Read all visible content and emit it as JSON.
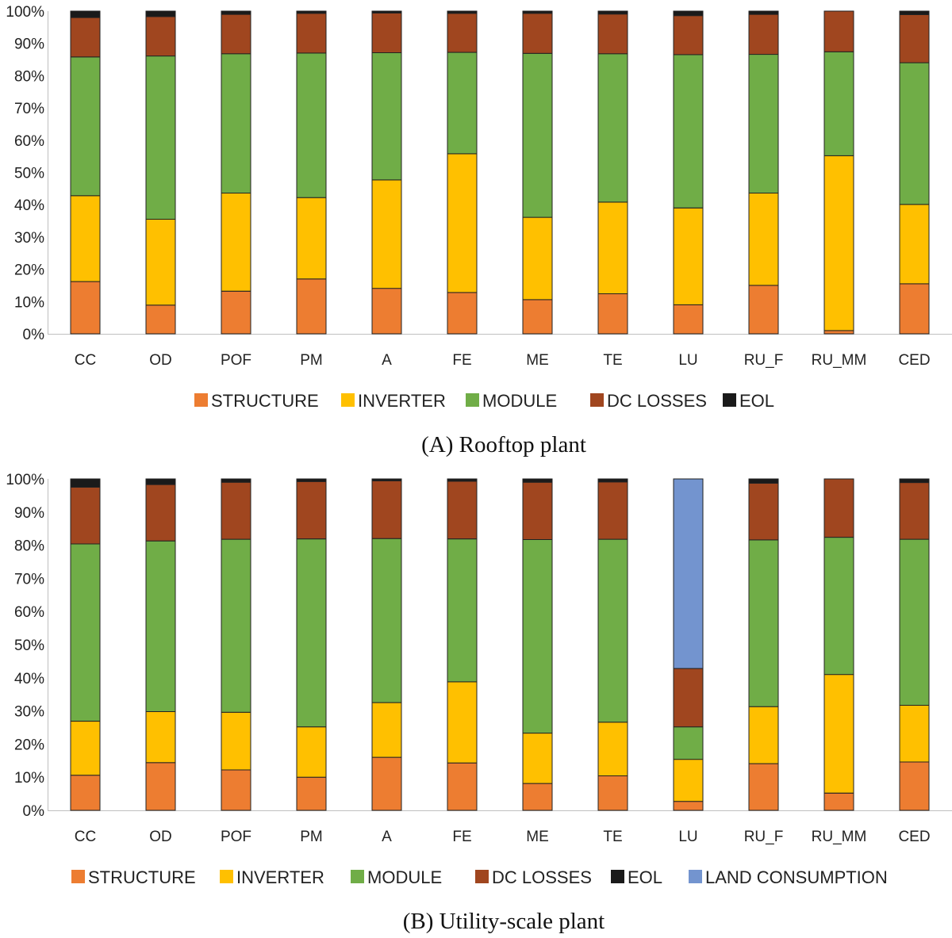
{
  "colors": {
    "STRUCTURE": "#ED7D31",
    "INVERTER": "#FFC000",
    "MODULE": "#70AD47",
    "DC LOSSES": "#A0461F",
    "EOL": "#1a1a1a",
    "LAND CONSUMPTION": "#7394CF"
  },
  "chart_data": [
    {
      "type": "bar",
      "stacked": true,
      "caption": "(A) Rooftop plant",
      "categories": [
        "CC",
        "OD",
        "POF",
        "PM",
        "A",
        "FE",
        "ME",
        "TE",
        "LU",
        "RU_F",
        "RU_MM",
        "CED"
      ],
      "y_tick_labels": [
        "0%",
        "10%",
        "20%",
        "30%",
        "40%",
        "50%",
        "60%",
        "70%",
        "80%",
        "90%",
        "100%"
      ],
      "ylim": [
        0,
        100
      ],
      "legend_position": "bottom",
      "series": [
        {
          "name": "STRUCTURE",
          "values": [
            16.2,
            8.9,
            13.2,
            17.0,
            14.1,
            12.8,
            10.6,
            12.4,
            9.0,
            15.0,
            1.0,
            15.5
          ]
        },
        {
          "name": "INVERTER",
          "values": [
            26.6,
            26.6,
            30.4,
            25.2,
            33.6,
            43.0,
            25.5,
            28.4,
            30.0,
            28.6,
            54.2,
            24.6
          ]
        },
        {
          "name": "MODULE",
          "values": [
            43.0,
            50.6,
            43.2,
            44.8,
            39.4,
            31.4,
            50.8,
            46.0,
            47.5,
            43.0,
            32.2,
            43.9
          ]
        },
        {
          "name": "DC LOSSES",
          "values": [
            12.2,
            12.2,
            12.2,
            12.3,
            12.3,
            12.1,
            12.4,
            12.3,
            12.1,
            12.4,
            12.6,
            14.9
          ]
        },
        {
          "name": "EOL",
          "values": [
            2.0,
            1.7,
            1.0,
            0.7,
            0.6,
            0.7,
            0.7,
            0.9,
            1.4,
            1.0,
            0.0,
            1.1
          ]
        }
      ]
    },
    {
      "type": "bar",
      "stacked": true,
      "caption": "(B) Utility-scale plant",
      "categories": [
        "CC",
        "OD",
        "POF",
        "PM",
        "A",
        "FE",
        "ME",
        "TE",
        "LU",
        "RU_F",
        "RU_MM",
        "CED"
      ],
      "y_tick_labels": [
        "0%",
        "10%",
        "20%",
        "30%",
        "40%",
        "50%",
        "60%",
        "70%",
        "80%",
        "90%",
        "100%"
      ],
      "ylim": [
        0,
        100
      ],
      "legend_position": "bottom",
      "series": [
        {
          "name": "STRUCTURE",
          "values": [
            10.6,
            14.4,
            12.2,
            10.0,
            16.0,
            14.3,
            8.1,
            10.4,
            2.7,
            14.1,
            5.2,
            14.6
          ]
        },
        {
          "name": "INVERTER",
          "values": [
            16.3,
            15.4,
            17.4,
            15.2,
            16.5,
            24.5,
            15.2,
            16.2,
            12.7,
            17.2,
            35.8,
            17.1
          ]
        },
        {
          "name": "MODULE",
          "values": [
            53.5,
            51.5,
            52.2,
            56.7,
            49.5,
            43.1,
            58.4,
            55.2,
            9.8,
            50.3,
            41.4,
            50.1
          ]
        },
        {
          "name": "DC LOSSES",
          "values": [
            17.1,
            17.0,
            17.2,
            17.3,
            17.4,
            17.4,
            17.3,
            17.3,
            17.6,
            17.1,
            17.6,
            17.1
          ]
        },
        {
          "name": "EOL",
          "values": [
            2.5,
            1.7,
            1.0,
            0.8,
            0.6,
            0.7,
            1.0,
            0.9,
            0.0,
            1.3,
            0.0,
            1.1
          ]
        },
        {
          "name": "LAND CONSUMPTION",
          "values": [
            0,
            0,
            0,
            0,
            0,
            0,
            0,
            0,
            57.2,
            0,
            0,
            0
          ]
        }
      ]
    }
  ]
}
